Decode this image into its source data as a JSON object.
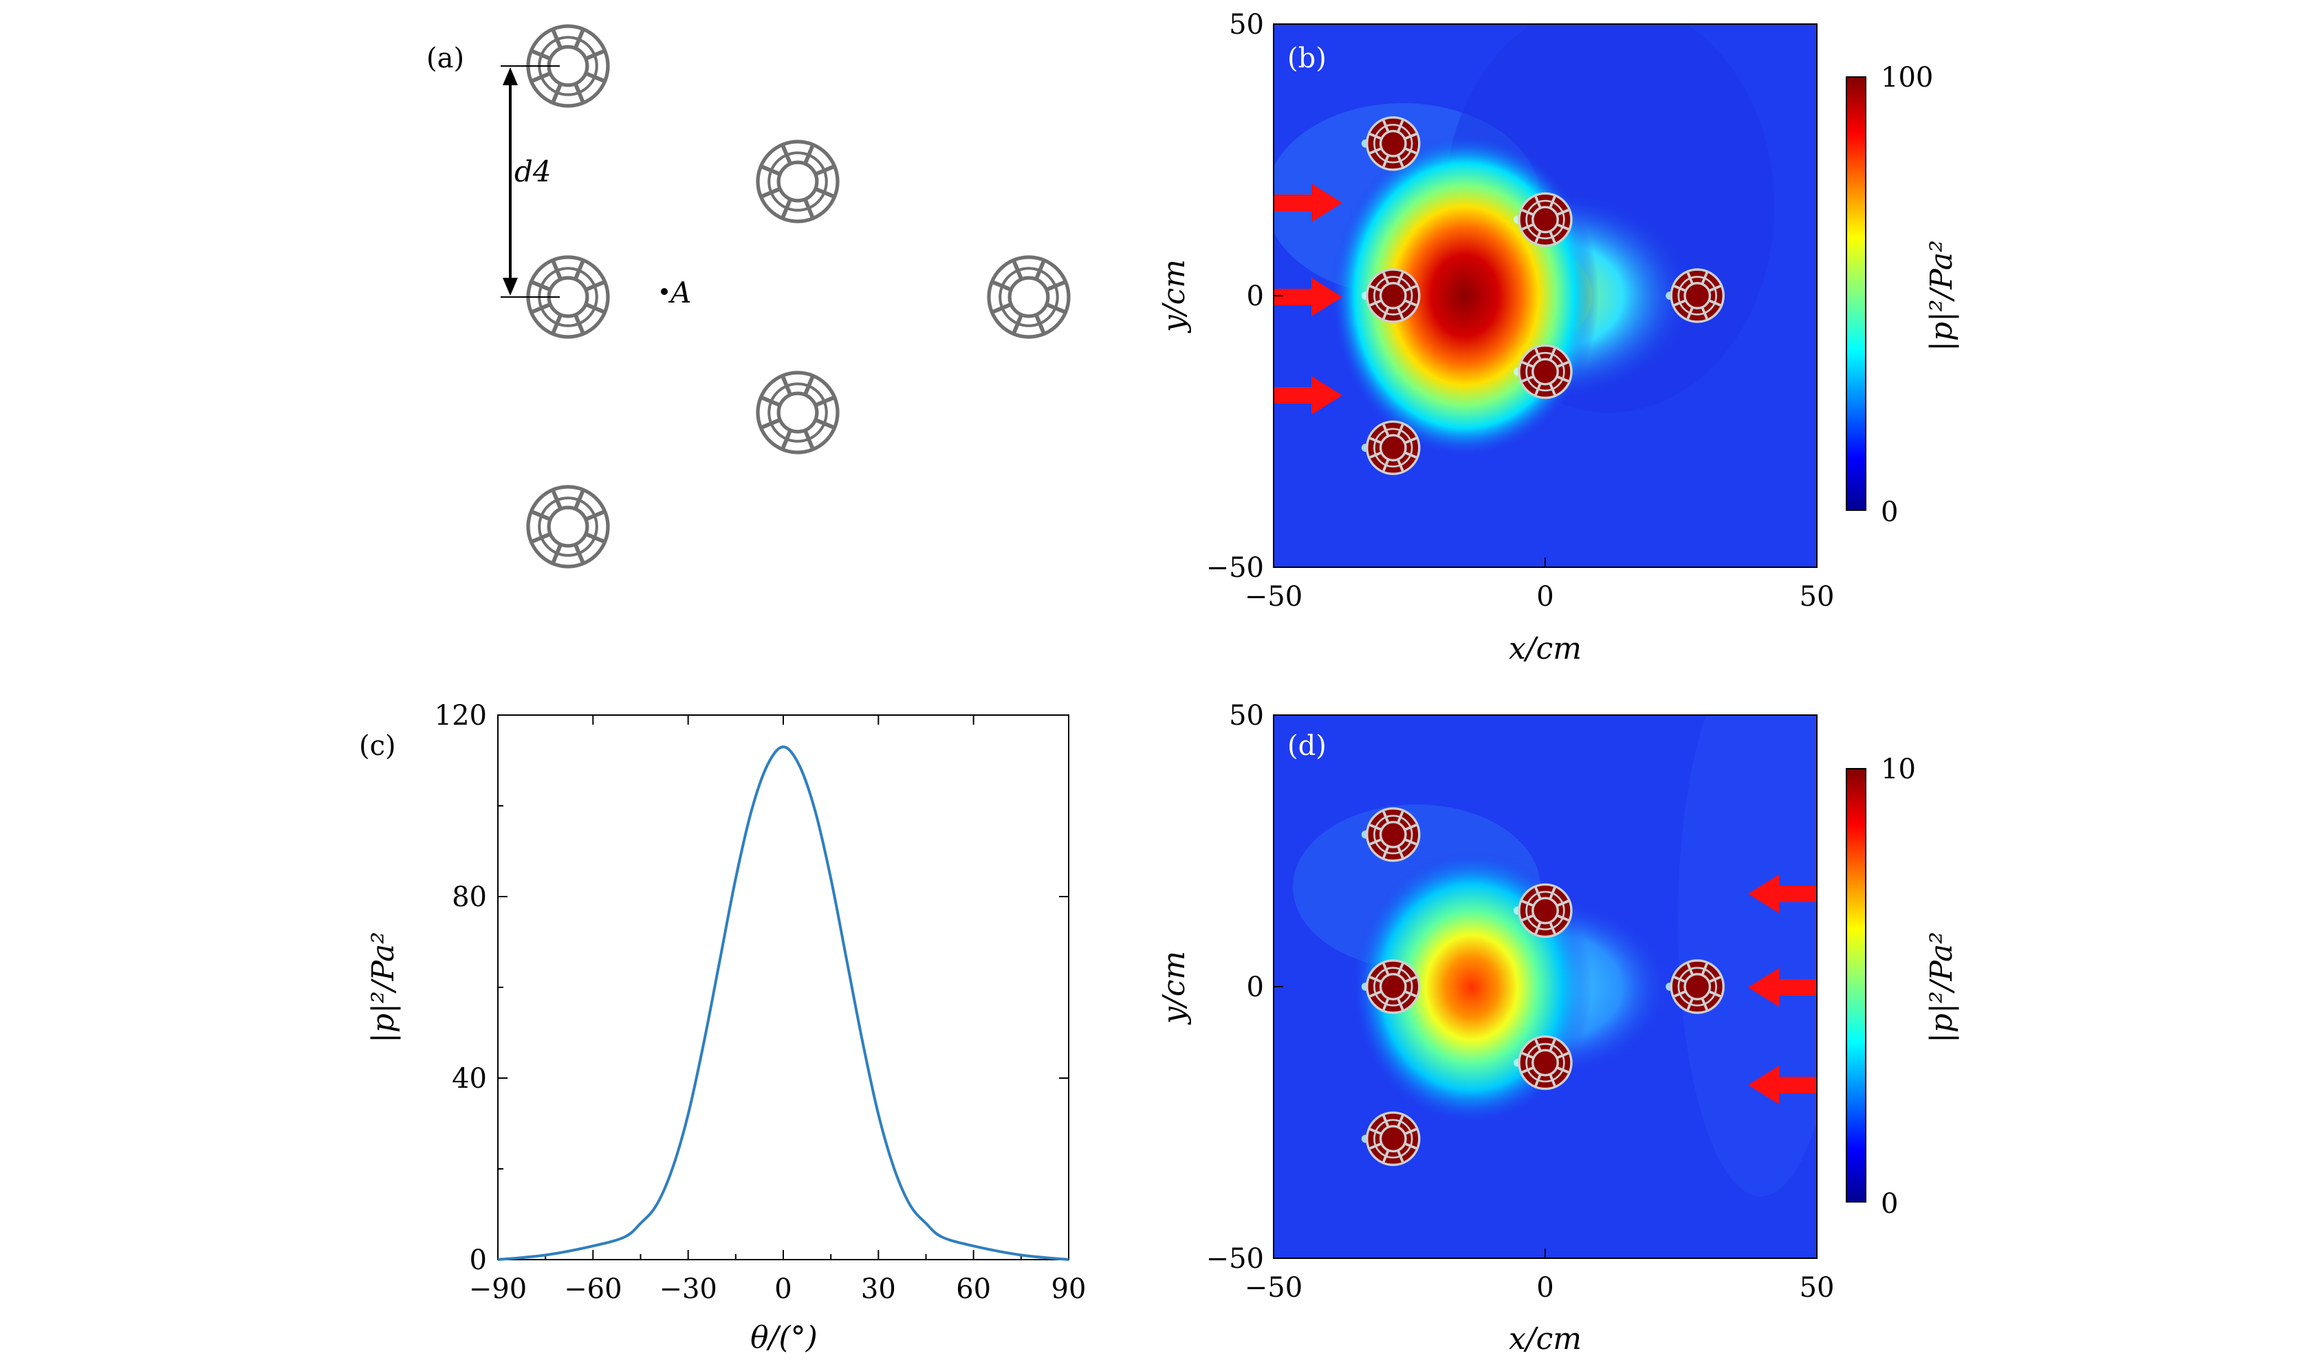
{
  "panels": {
    "a": {
      "label": "(a)",
      "distance_label": "d4",
      "point_label": "A"
    },
    "b": {
      "label": "(b)"
    },
    "c": {
      "label": "(c)"
    },
    "d": {
      "label": "(d)"
    }
  },
  "colors": {
    "field_background": "#1e3cf0",
    "hot": "#8b0000",
    "arrow": "#ff1010",
    "curve": "#2f7fbf",
    "resonator": "#7f7f7f"
  },
  "chart_data": [
    {
      "type": "heatmap",
      "panel": "b",
      "xlabel": "x/cm",
      "ylabel": "y/cm",
      "xlim": [
        -50,
        50
      ],
      "ylim": [
        -50,
        50
      ],
      "x_ticks": [
        "−50",
        "0",
        "50"
      ],
      "y_ticks": [
        "50",
        "0",
        "−50"
      ],
      "colorbar": {
        "label": "|p|²/Pa²",
        "min_label": "0",
        "max_label": "100",
        "min": 0,
        "max": 100
      },
      "incident_direction": "left-to-right",
      "scatterers": [
        [
          -28,
          28
        ],
        [
          0,
          14
        ],
        [
          -28,
          0
        ],
        [
          28,
          0
        ],
        [
          0,
          -14
        ],
        [
          -28,
          -28
        ]
      ],
      "focus_spot": {
        "x": -10,
        "y": 0,
        "peak": 100
      }
    },
    {
      "type": "line",
      "panel": "c",
      "xlabel": "θ/(°)",
      "ylabel": "|p|²/Pa²",
      "xlim": [
        -90,
        90
      ],
      "ylim": [
        0,
        120
      ],
      "x_ticks": [
        "−90",
        "−60",
        "−30",
        "0",
        "30",
        "60",
        "90"
      ],
      "y_ticks": [
        "0",
        "40",
        "80",
        "120"
      ],
      "series": [
        {
          "x": [
            -90,
            -75,
            -60,
            -50,
            -45,
            -40,
            -35,
            -30,
            -25,
            -20,
            -15,
            -10,
            -5,
            0,
            5,
            10,
            15,
            20,
            25,
            30,
            35,
            40,
            45,
            50,
            60,
            75,
            90
          ],
          "y": [
            0,
            1,
            3,
            5,
            8,
            12,
            20,
            32,
            48,
            66,
            84,
            99,
            109,
            113,
            109,
            99,
            84,
            66,
            48,
            32,
            20,
            12,
            8,
            5,
            3,
            1,
            0
          ]
        }
      ]
    },
    {
      "type": "heatmap",
      "panel": "d",
      "xlabel": "x/cm",
      "ylabel": "y/cm",
      "xlim": [
        -50,
        50
      ],
      "ylim": [
        -50,
        50
      ],
      "x_ticks": [
        "−50",
        "0",
        "50"
      ],
      "y_ticks": [
        "50",
        "0",
        "−50"
      ],
      "colorbar": {
        "label": "|p|²/Pa²",
        "min_label": "0",
        "max_label": "10",
        "min": 0,
        "max": 10
      },
      "incident_direction": "right-to-left",
      "scatterers": [
        [
          -28,
          28
        ],
        [
          0,
          14
        ],
        [
          -28,
          0
        ],
        [
          28,
          0
        ],
        [
          0,
          -14
        ],
        [
          -28,
          -28
        ]
      ],
      "focus_spot": {
        "x": -11,
        "y": 0,
        "peak": 8
      }
    }
  ]
}
